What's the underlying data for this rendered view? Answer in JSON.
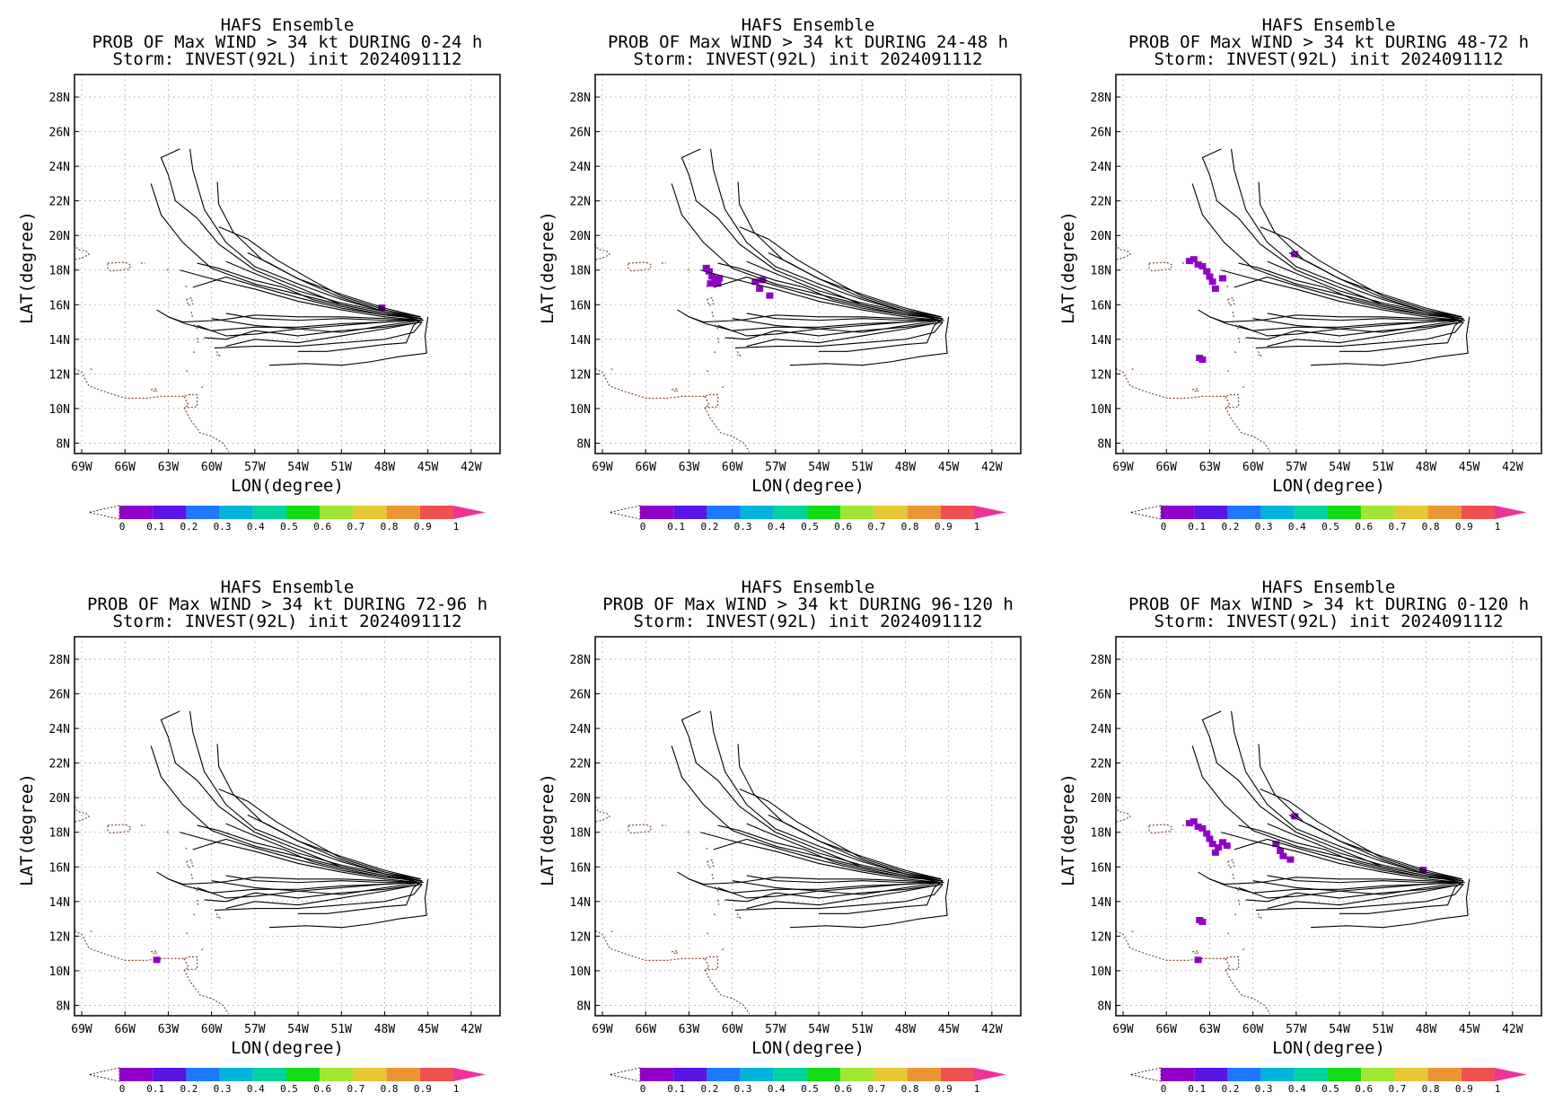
{
  "panels": [
    {
      "title_lines": [
        "HAFS Ensemble",
        "PROB OF Max WIND > 34 kt DURING  0-24 h",
        "Storm: INVEST(92L) init 2024091112"
      ],
      "xlabel": "LON(degree)",
      "ylabel": "LAT(degree)",
      "x_ticks": [
        "69W",
        "66W",
        "63W",
        "60W",
        "57W",
        "54W",
        "51W",
        "48W",
        "45W",
        "42W"
      ],
      "y_ticks": [
        "8N",
        "10N",
        "12N",
        "14N",
        "16N",
        "18N",
        "20N",
        "22N",
        "24N",
        "26N",
        "28N"
      ],
      "colorbar_labels": [
        "0",
        "0.1",
        "0.2",
        "0.3",
        "0.4",
        "0.5",
        "0.6",
        "0.7",
        "0.8",
        "0.9",
        "1"
      ]
    },
    {
      "title_lines": [
        "HAFS Ensemble",
        "PROB OF Max WIND > 34 kt DURING 24-48 h",
        "Storm: INVEST(92L) init 2024091112"
      ],
      "xlabel": "LON(degree)",
      "ylabel": "LAT(degree)",
      "x_ticks": [
        "69W",
        "66W",
        "63W",
        "60W",
        "57W",
        "54W",
        "51W",
        "48W",
        "45W",
        "42W"
      ],
      "y_ticks": [
        "8N",
        "10N",
        "12N",
        "14N",
        "16N",
        "18N",
        "20N",
        "22N",
        "24N",
        "26N",
        "28N"
      ],
      "colorbar_labels": [
        "0",
        "0.1",
        "0.2",
        "0.3",
        "0.4",
        "0.5",
        "0.6",
        "0.7",
        "0.8",
        "0.9",
        "1"
      ]
    },
    {
      "title_lines": [
        "HAFS Ensemble",
        "PROB OF Max WIND > 34 kt DURING 48-72 h",
        "Storm: INVEST(92L) init 2024091112"
      ],
      "xlabel": "LON(degree)",
      "ylabel": "LAT(degree)",
      "x_ticks": [
        "69W",
        "66W",
        "63W",
        "60W",
        "57W",
        "54W",
        "51W",
        "48W",
        "45W",
        "42W"
      ],
      "y_ticks": [
        "8N",
        "10N",
        "12N",
        "14N",
        "16N",
        "18N",
        "20N",
        "22N",
        "24N",
        "26N",
        "28N"
      ],
      "colorbar_labels": [
        "0",
        "0.1",
        "0.2",
        "0.3",
        "0.4",
        "0.5",
        "0.6",
        "0.7",
        "0.8",
        "0.9",
        "1"
      ]
    },
    {
      "title_lines": [
        "HAFS Ensemble",
        "PROB OF Max WIND > 34 kt DURING 72-96 h",
        "Storm: INVEST(92L) init 2024091112"
      ],
      "xlabel": "LON(degree)",
      "ylabel": "LAT(degree)",
      "x_ticks": [
        "69W",
        "66W",
        "63W",
        "60W",
        "57W",
        "54W",
        "51W",
        "48W",
        "45W",
        "42W"
      ],
      "y_ticks": [
        "8N",
        "10N",
        "12N",
        "14N",
        "16N",
        "18N",
        "20N",
        "22N",
        "24N",
        "26N",
        "28N"
      ],
      "colorbar_labels": [
        "0",
        "0.1",
        "0.2",
        "0.3",
        "0.4",
        "0.5",
        "0.6",
        "0.7",
        "0.8",
        "0.9",
        "1"
      ]
    },
    {
      "title_lines": [
        "HAFS Ensemble",
        "PROB OF Max WIND > 34 kt DURING 96-120 h",
        "Storm: INVEST(92L) init 2024091112"
      ],
      "xlabel": "LON(degree)",
      "ylabel": "LAT(degree)",
      "x_ticks": [
        "69W",
        "66W",
        "63W",
        "60W",
        "57W",
        "54W",
        "51W",
        "48W",
        "45W",
        "42W"
      ],
      "y_ticks": [
        "8N",
        "10N",
        "12N",
        "14N",
        "16N",
        "18N",
        "20N",
        "22N",
        "24N",
        "26N",
        "28N"
      ],
      "colorbar_labels": [
        "0",
        "0.1",
        "0.2",
        "0.3",
        "0.4",
        "0.5",
        "0.6",
        "0.7",
        "0.8",
        "0.9",
        "1"
      ]
    },
    {
      "title_lines": [
        "HAFS Ensemble",
        "PROB OF Max WIND > 34 kt DURING 0-120 h",
        "Storm: INVEST(92L) init 2024091112"
      ],
      "xlabel": "LON(degree)",
      "ylabel": "LAT(degree)",
      "x_ticks": [
        "69W",
        "66W",
        "63W",
        "60W",
        "57W",
        "54W",
        "51W",
        "48W",
        "45W",
        "42W"
      ],
      "y_ticks": [
        "8N",
        "10N",
        "12N",
        "14N",
        "16N",
        "18N",
        "20N",
        "22N",
        "24N",
        "26N",
        "28N"
      ],
      "colorbar_labels": [
        "0",
        "0.1",
        "0.2",
        "0.3",
        "0.4",
        "0.5",
        "0.6",
        "0.7",
        "0.8",
        "0.9",
        "1"
      ]
    }
  ],
  "chart_data": {
    "type": "map",
    "xlim": [
      -69.5,
      -40
    ],
    "ylim": [
      7.4,
      29.3
    ],
    "grid": true,
    "colorbar": {
      "levels": [
        0,
        0.1,
        0.2,
        0.3,
        0.4,
        0.5,
        0.6,
        0.7,
        0.8,
        0.9,
        1
      ],
      "colors": [
        "#9100c8",
        "#5a14e6",
        "#1e78ff",
        "#00b4dc",
        "#00d2a0",
        "#14dc14",
        "#a0e632",
        "#e6c832",
        "#eb9632",
        "#f05050"
      ],
      "under_color": "#ffffff",
      "over_color": "#f0329b"
    },
    "track_color": "#000000",
    "coast_color": "#8b4a2e",
    "tracks": [
      [
        [
          -45.5,
          15.3
        ],
        [
          -48,
          15.6
        ],
        [
          -51,
          16.3
        ],
        [
          -54,
          17.2
        ],
        [
          -57,
          18.2
        ],
        [
          -59,
          19.6
        ],
        [
          -60.5,
          21.5
        ],
        [
          -61.3,
          23.8
        ],
        [
          -61.5,
          25
        ]
      ],
      [
        [
          -45.5,
          15.2
        ],
        [
          -48,
          15.6
        ],
        [
          -51,
          16.4
        ],
        [
          -54,
          17.5
        ],
        [
          -56.5,
          18.6
        ],
        [
          -58.5,
          20.2
        ],
        [
          -59.5,
          21.8
        ],
        [
          -59.6,
          23.1
        ]
      ],
      [
        [
          -45.5,
          15.2
        ],
        [
          -48,
          15.5
        ],
        [
          -51,
          16
        ],
        [
          -54,
          17
        ],
        [
          -57,
          18
        ],
        [
          -59.5,
          19.5
        ],
        [
          -61,
          21
        ],
        [
          -62.5,
          22
        ],
        [
          -63,
          23.5
        ],
        [
          -63.5,
          24.5
        ],
        [
          -62.2,
          25
        ]
      ],
      [
        [
          -45.6,
          15.3
        ],
        [
          -48,
          15.7
        ],
        [
          -51,
          16.5
        ],
        [
          -53,
          17.4
        ],
        [
          -55.5,
          18.6
        ],
        [
          -57.5,
          19.8
        ],
        [
          -59.5,
          20.5
        ]
      ],
      [
        [
          -45.5,
          15.1
        ],
        [
          -48,
          15.5
        ],
        [
          -51,
          16
        ],
        [
          -54,
          16.6
        ],
        [
          -57,
          17.2
        ],
        [
          -60,
          18.1
        ],
        [
          -62,
          19.6
        ],
        [
          -63.5,
          21.2
        ],
        [
          -64,
          22.5
        ],
        [
          -64.2,
          23
        ]
      ],
      [
        [
          -45.4,
          15.2
        ],
        [
          -48,
          15.4
        ],
        [
          -51,
          15.8
        ],
        [
          -54,
          16.4
        ],
        [
          -57,
          17.1
        ],
        [
          -59,
          17.6
        ],
        [
          -61.3,
          17
        ]
      ],
      [
        [
          -45.5,
          15.1
        ],
        [
          -48,
          15.3
        ],
        [
          -51,
          15.7
        ],
        [
          -54,
          16.2
        ],
        [
          -57,
          16.9
        ],
        [
          -60,
          17.5
        ],
        [
          -62.2,
          18
        ]
      ],
      [
        [
          -45.5,
          15.2
        ],
        [
          -48,
          15.4
        ],
        [
          -51,
          15.9
        ],
        [
          -53,
          16.3
        ],
        [
          -55,
          17
        ],
        [
          -57,
          17.4
        ],
        [
          -59.5,
          18.1
        ],
        [
          -61,
          18.4
        ]
      ],
      [
        [
          -45.5,
          15.2
        ],
        [
          -48,
          15.6
        ],
        [
          -51,
          16.1
        ],
        [
          -54,
          16.8
        ],
        [
          -57,
          17.8
        ],
        [
          -59,
          18.5
        ]
      ],
      [
        [
          -45.5,
          15.1
        ],
        [
          -48,
          15.2
        ],
        [
          -51,
          15.3
        ],
        [
          -54,
          15.3
        ],
        [
          -57,
          15.4
        ],
        [
          -59.5,
          15.1
        ],
        [
          -62,
          15
        ],
        [
          -63,
          15.3
        ]
      ],
      [
        [
          -45.5,
          15.1
        ],
        [
          -48,
          15
        ],
        [
          -51,
          14.9
        ],
        [
          -54,
          14.7
        ],
        [
          -57,
          14.7
        ],
        [
          -60,
          14.5
        ],
        [
          -61.8,
          14.9
        ],
        [
          -63,
          15.3
        ],
        [
          -63.8,
          15.7
        ]
      ],
      [
        [
          -45.4,
          15.1
        ],
        [
          -48,
          14.8
        ],
        [
          -51,
          14.4
        ],
        [
          -54,
          14.6
        ],
        [
          -57,
          14.3
        ],
        [
          -59,
          14.2
        ],
        [
          -61,
          14.8
        ]
      ],
      [
        [
          -45.4,
          15
        ],
        [
          -48,
          14.7
        ],
        [
          -51,
          14.5
        ],
        [
          -54,
          14.2
        ],
        [
          -57,
          14.5
        ],
        [
          -59,
          14
        ],
        [
          -60.5,
          14.1
        ]
      ],
      [
        [
          -45.5,
          15
        ],
        [
          -48,
          14.6
        ],
        [
          -51,
          14.2
        ],
        [
          -54,
          13.8
        ],
        [
          -57,
          14
        ],
        [
          -59,
          13.6
        ]
      ],
      [
        [
          -45.5,
          15.1
        ],
        [
          -48,
          15
        ],
        [
          -51,
          14.8
        ],
        [
          -54,
          14.6
        ],
        [
          -57,
          14.8
        ],
        [
          -60,
          15.2
        ]
      ],
      [
        [
          -45.4,
          15
        ],
        [
          -46,
          14.4
        ],
        [
          -48,
          14
        ],
        [
          -51,
          13.8
        ],
        [
          -54,
          13.6
        ],
        [
          -57,
          13.6
        ],
        [
          -59.8,
          13.5
        ]
      ],
      [
        [
          -45,
          15.3
        ],
        [
          -45.2,
          14.2
        ],
        [
          -45.1,
          13.2
        ],
        [
          -47,
          13
        ],
        [
          -49,
          12.7
        ],
        [
          -51,
          12.5
        ],
        [
          -53.5,
          12.6
        ],
        [
          -56,
          12.5
        ]
      ],
      [
        [
          -45.4,
          15.2
        ],
        [
          -46,
          14.8
        ],
        [
          -46.5,
          13.8
        ],
        [
          -48,
          13.7
        ],
        [
          -50,
          13.5
        ],
        [
          -52,
          13.3
        ],
        [
          -54,
          13.3
        ]
      ],
      [
        [
          -45.3,
          15.1
        ],
        [
          -48,
          15.1
        ],
        [
          -51,
          15.2
        ],
        [
          -54,
          15.1
        ],
        [
          -57,
          15.2
        ],
        [
          -59,
          15.5
        ]
      ],
      [
        [
          -45.5,
          15.3
        ],
        [
          -48,
          15.8
        ],
        [
          -51,
          16.6
        ],
        [
          -54,
          17.5
        ],
        [
          -56,
          18.4
        ],
        [
          -57.5,
          19
        ]
      ]
    ],
    "prob_points": [
      [
        [
          -48.2,
          15.8,
          0.05
        ]
      ],
      [
        [
          -61.8,
          18.1,
          0.05
        ],
        [
          -61.6,
          17.9,
          0.05
        ],
        [
          -61.4,
          17.6,
          0.05
        ],
        [
          -61.2,
          17.4,
          0.05
        ],
        [
          -61,
          17.2,
          0.05
        ],
        [
          -61.5,
          17.2,
          0.05
        ],
        [
          -60.9,
          17.5,
          0.05
        ],
        [
          -58.4,
          17.3,
          0.05
        ],
        [
          -58.1,
          16.9,
          0.05
        ],
        [
          -57.9,
          17.4,
          0.05
        ],
        [
          -57.4,
          16.5,
          0.05
        ]
      ],
      [
        [
          -64.4,
          18.5,
          0.05
        ],
        [
          -64.1,
          18.6,
          0.05
        ],
        [
          -63.8,
          18.3,
          0.05
        ],
        [
          -63.5,
          18.2,
          0.05
        ],
        [
          -63.2,
          17.9,
          0.05
        ],
        [
          -63,
          17.6,
          0.05
        ],
        [
          -62.8,
          17.3,
          0.05
        ],
        [
          -62.1,
          17.5,
          0.05
        ],
        [
          -62.6,
          16.9,
          0.05
        ],
        [
          -57.1,
          18.9,
          0.05
        ],
        [
          -63.7,
          12.9,
          0.05
        ],
        [
          -63.5,
          12.8,
          0.05
        ]
      ],
      [
        [
          -63.8,
          10.6,
          0.05
        ]
      ],
      [],
      [
        [
          -64.4,
          18.5,
          0.05
        ],
        [
          -64.1,
          18.6,
          0.05
        ],
        [
          -63.8,
          18.3,
          0.05
        ],
        [
          -63.5,
          18.2,
          0.05
        ],
        [
          -63.2,
          17.9,
          0.05
        ],
        [
          -63,
          17.6,
          0.05
        ],
        [
          -62.8,
          17.3,
          0.05
        ],
        [
          -62.4,
          17.1,
          0.05
        ],
        [
          -62.1,
          17.4,
          0.05
        ],
        [
          -62.6,
          16.8,
          0.05
        ],
        [
          -61.8,
          17.2,
          0.05
        ],
        [
          -58.4,
          17.3,
          0.05
        ],
        [
          -58.1,
          16.9,
          0.05
        ],
        [
          -57.9,
          16.6,
          0.05
        ],
        [
          -57.4,
          16.4,
          0.05
        ],
        [
          -57.1,
          18.9,
          0.05
        ],
        [
          -48.2,
          15.8,
          0.05
        ],
        [
          -63.7,
          12.9,
          0.05
        ],
        [
          -63.5,
          12.8,
          0.05
        ],
        [
          -63.8,
          10.6,
          0.05
        ]
      ]
    ]
  }
}
